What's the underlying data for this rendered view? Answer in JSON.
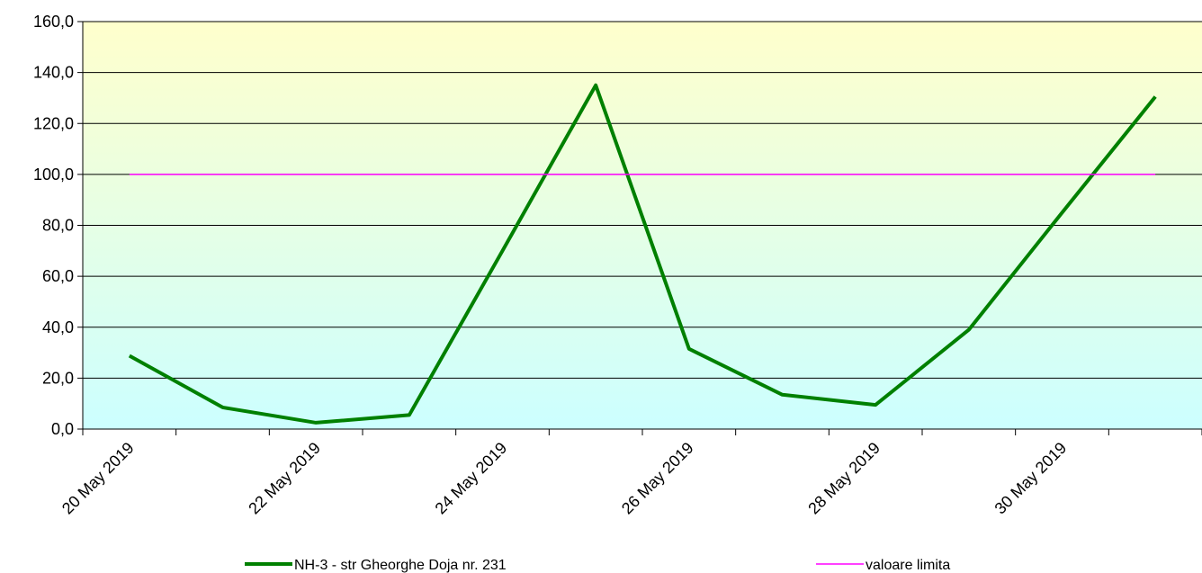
{
  "chart_data": {
    "type": "line",
    "categories": [
      "20 May 2019",
      null,
      "22 May 2019",
      null,
      "24 May 2019",
      null,
      "26 May 2019",
      null,
      "28 May 2019",
      null,
      "30 May 2019",
      null
    ],
    "series": [
      {
        "name": "NH-3 - str Gheorghe Doja nr. 231",
        "color": "#008000",
        "values": [
          28.8,
          8.5,
          2.5,
          5.5,
          70,
          135,
          31.5,
          13.5,
          9.5,
          39,
          85,
          130.5
        ]
      },
      {
        "name": "valoare limita",
        "color": "#ff00ff",
        "values": [
          100,
          100,
          100,
          100,
          100,
          100,
          100,
          100,
          100,
          100,
          100,
          100
        ]
      }
    ],
    "ylim": [
      0,
      160
    ],
    "yticks": [
      {
        "value": 0,
        "label": "0,0"
      },
      {
        "value": 20,
        "label": "20,0"
      },
      {
        "value": 40,
        "label": "40,0"
      },
      {
        "value": 60,
        "label": "60,0"
      },
      {
        "value": 80,
        "label": "80,0"
      },
      {
        "value": 100,
        "label": "100,0"
      },
      {
        "value": 120,
        "label": "120,0"
      },
      {
        "value": 140,
        "label": "140,0"
      },
      {
        "value": 160,
        "label": "160,0"
      }
    ],
    "grid": true,
    "legend": "bottom"
  }
}
